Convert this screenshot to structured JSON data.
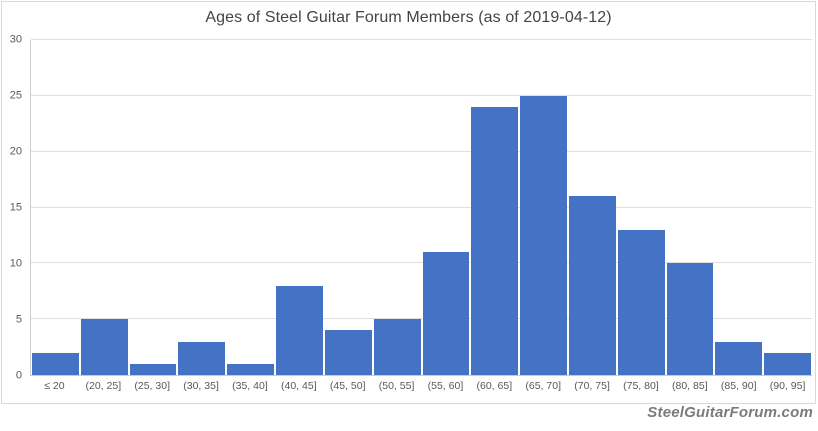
{
  "chart_data": {
    "type": "bar",
    "title": "Ages of Steel Guitar Forum Members (as of 2019-04-12)",
    "categories": [
      "≤ 20",
      "(20, 25]",
      "(25, 30]",
      "(30, 35]",
      "(35, 40]",
      "(40, 45]",
      "(45, 50]",
      "(50, 55]",
      "(55, 60]",
      "(60, 65]",
      "(65, 70]",
      "(70, 75]",
      "(75, 80]",
      "(80, 85]",
      "(85, 90]",
      "(90, 95]"
    ],
    "values": [
      2,
      5,
      1,
      3,
      1,
      8,
      4,
      5,
      11,
      24,
      25,
      16,
      13,
      10,
      3,
      2
    ],
    "xlabel": "",
    "ylabel": "",
    "ylim": [
      0,
      30
    ],
    "yticks": [
      0,
      5,
      10,
      15,
      20,
      25,
      30
    ],
    "grid": true,
    "legend_position": "none",
    "bar_color": "#4472C4",
    "gridline_color": "#e0e0e0"
  },
  "watermark": {
    "text": "SteelGuitarForum.com"
  }
}
